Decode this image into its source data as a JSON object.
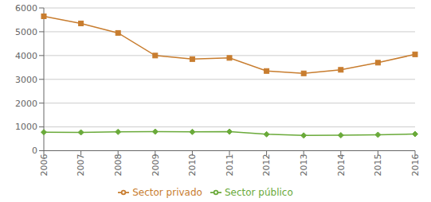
{
  "chart_data": {
    "type": "line",
    "categories": [
      "2006",
      "2007",
      "2008",
      "2009",
      "2010",
      "2011",
      "2012",
      "2013",
      "2014",
      "2015",
      "2016"
    ],
    "series": [
      {
        "name": "Sector público",
        "color": "#6aaa3a",
        "marker": "diamond",
        "values": [
          780,
          770,
          790,
          800,
          790,
          800,
          690,
          640,
          650,
          670,
          700
        ]
      },
      {
        "name": "Sector privado",
        "color": "#c87d2f",
        "marker": "square",
        "values": [
          5650,
          5350,
          4950,
          4000,
          3850,
          3900,
          3350,
          3250,
          3400,
          3700,
          4050
        ]
      }
    ],
    "ylim": [
      0,
      6000
    ],
    "yticks": [
      0,
      1000,
      2000,
      3000,
      4000,
      5000,
      6000
    ],
    "grid": true,
    "legend": "bottom"
  }
}
